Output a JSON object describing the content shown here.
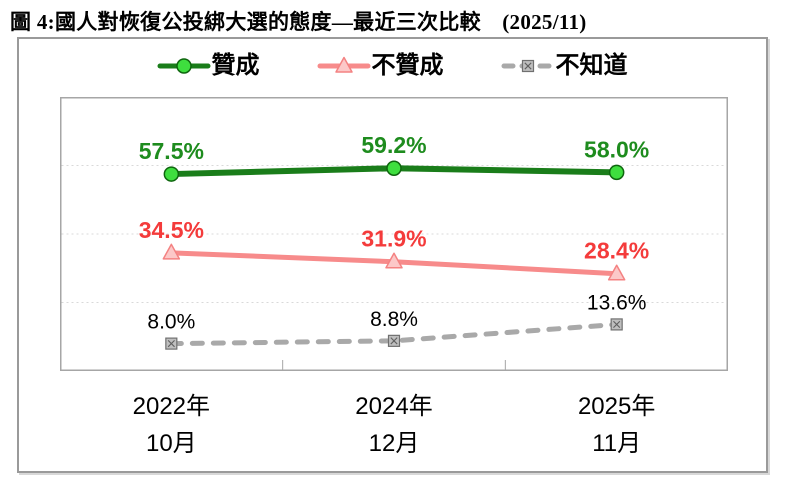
{
  "figure_title": "圖 4:國人對恢復公投綁大選的態度—最近三次比較　(2025/11)",
  "colors": {
    "frame_border": "#9a9a9a",
    "plot_border": "#a6a6a6",
    "grid": "#d9d9d9",
    "approve_line": "#1a7d1a",
    "approve_label": "#1e8c1e",
    "disapprove_line": "#f78b8b",
    "disapprove_label": "#f43b3b",
    "unknown_line": "#a9a9a9",
    "unknown_label": "#000000"
  },
  "icons": {
    "approve_marker": "green-circle-marker-icon",
    "disapprove_marker": "pink-triangle-marker-icon",
    "unknown_marker": "gray-square-x-marker-icon"
  },
  "chart_data": {
    "type": "line",
    "title": "圖 4:國人對恢復公投綁大選的態度—最近三次比較 (2025/11)",
    "categories": [
      [
        "2022年",
        "10月"
      ],
      [
        "2024年",
        "12月"
      ],
      [
        "2025年",
        "11月"
      ]
    ],
    "series": [
      {
        "name": "贊成",
        "values": [
          57.5,
          59.2,
          58.0
        ],
        "point_labels": [
          "57.5%",
          "59.2%",
          "58.0%"
        ],
        "line_color": "#1a7d1a",
        "label_color": "#1e8c1e",
        "label_weight": "bold",
        "marker": "circle",
        "marker_fill": "#3ede3e",
        "marker_stroke": "#0e650e",
        "dashed": false
      },
      {
        "name": "不贊成",
        "values": [
          34.5,
          31.9,
          28.4
        ],
        "point_labels": [
          "34.5%",
          "31.9%",
          "28.4%"
        ],
        "line_color": "#f78b8b",
        "label_color": "#f43b3b",
        "label_weight": "bold",
        "marker": "triangle",
        "marker_fill": "#fcc8c8",
        "marker_stroke": "#f48282",
        "dashed": false
      },
      {
        "name": "不知道",
        "values": [
          8.0,
          8.8,
          13.6
        ],
        "point_labels": [
          "8.0%",
          "8.8%",
          "13.6%"
        ],
        "line_color": "#a9a9a9",
        "label_color": "#000000",
        "label_weight": "normal",
        "marker": "square-x",
        "marker_fill": "#bfbfbf",
        "marker_stroke": "#707070",
        "dashed": true
      }
    ],
    "ylim": [
      0,
      80
    ],
    "gridlines": [
      20,
      40,
      60
    ],
    "grid_style": "dotted-horizontal",
    "legend_position": "top"
  }
}
